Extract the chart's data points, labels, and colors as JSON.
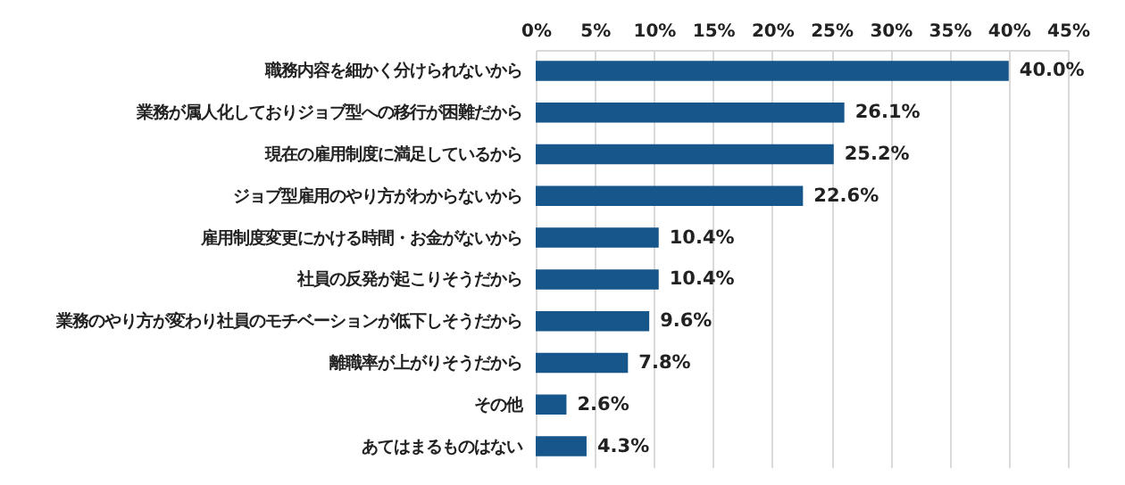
{
  "chart_data": {
    "type": "bar",
    "orientation": "horizontal",
    "categories": [
      "職務内容を細かく分けられないから",
      "業務が属人化しておりジョブ型への移行が困難だから",
      "現在の雇用制度に満足しているから",
      "ジョブ型雇用のやり方がわからないから",
      "雇用制度変更にかける時間・お金がないから",
      "社員の反発が起こりそうだから",
      "業務のやり方が変わり社員のモチベーションが低下しそうだから",
      "離職率が上がりそうだから",
      "その他",
      "あてはまるものはない"
    ],
    "values": [
      40.0,
      26.1,
      25.2,
      22.6,
      10.4,
      10.4,
      9.6,
      7.8,
      2.6,
      4.3
    ],
    "value_labels": [
      "40.0%",
      "26.1%",
      "25.2%",
      "22.6%",
      "10.4%",
      "10.4%",
      "9.6%",
      "7.8%",
      "2.6%",
      "4.3%"
    ],
    "color": "#17568a",
    "xlim": [
      0,
      45
    ],
    "xticks": [
      {
        "value": 0,
        "label": "0%"
      },
      {
        "value": 5,
        "label": "5%"
      },
      {
        "value": 10,
        "label": "10%"
      },
      {
        "value": 15,
        "label": "15%"
      },
      {
        "value": 20,
        "label": "20%"
      },
      {
        "value": 25,
        "label": "25%"
      },
      {
        "value": 30,
        "label": "30%"
      },
      {
        "value": 35,
        "label": "35%"
      },
      {
        "value": 40,
        "label": "40%"
      },
      {
        "value": 45,
        "label": "45%"
      }
    ],
    "grid": "x"
  }
}
